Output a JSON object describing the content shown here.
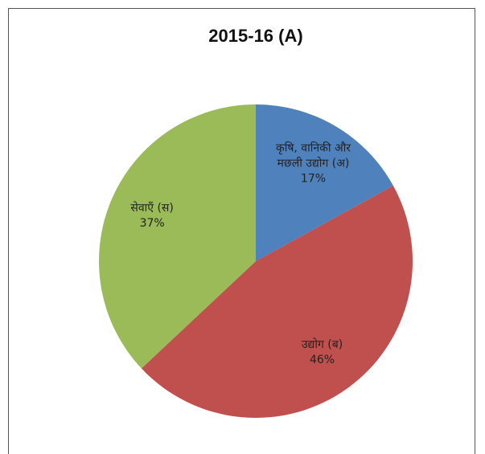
{
  "chart_data": {
    "type": "pie",
    "title": "2015-16 (A)",
    "categories": [
      "कृषि, वानिकी और मछली उद्योग (अ)",
      "उद्योग (ब)",
      "सेवाएँ (स)"
    ],
    "values": [
      17,
      46,
      37
    ],
    "value_labels": [
      "17%",
      "46%",
      "37%"
    ],
    "colors": [
      "#4f81bd",
      "#c0504d",
      "#9bbb59"
    ]
  }
}
